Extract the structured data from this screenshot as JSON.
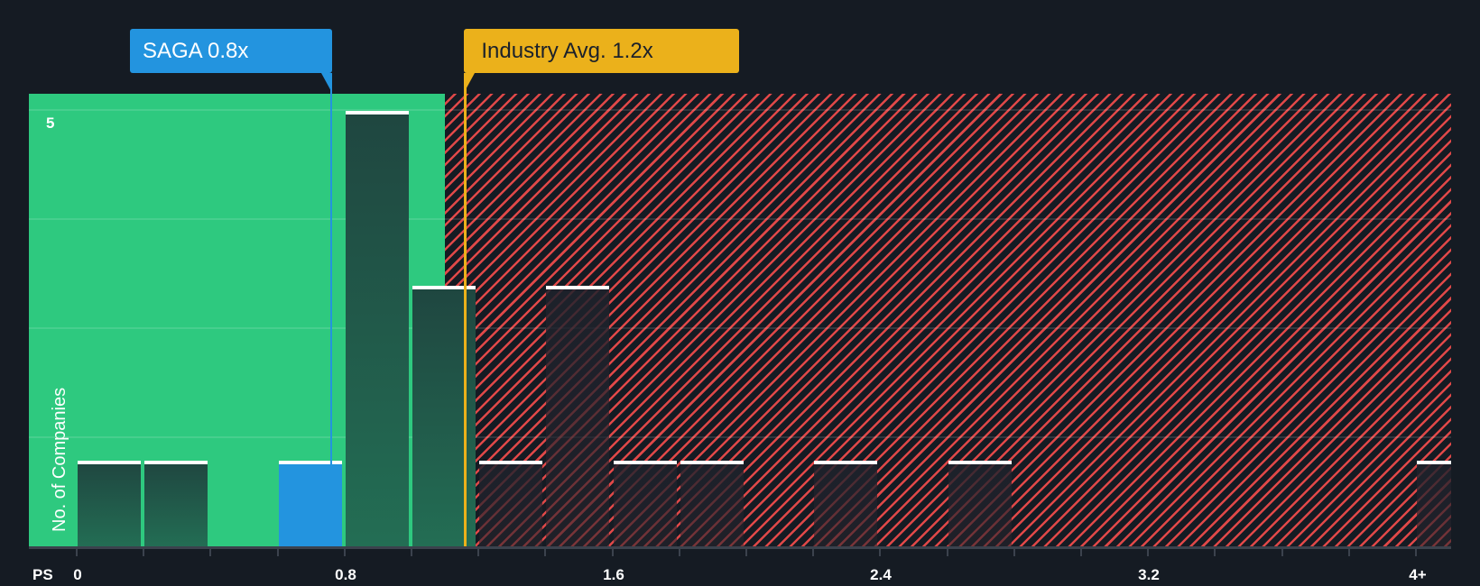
{
  "chart_data": {
    "type": "bar",
    "title": "",
    "xlabel": "PS",
    "ylabel": "No. of Companies",
    "x_tick_labels": [
      "0",
      "0.8",
      "1.6",
      "2.4",
      "3.2",
      "4+"
    ],
    "y_tick_labels": [
      "5"
    ],
    "ylim": [
      0,
      5.2
    ],
    "bin_width": 0.2,
    "categories": [
      "0-0.2",
      "0.2-0.4",
      "0.4-0.6",
      "0.6-0.8",
      "0.8-1.0",
      "1.0-1.2",
      "1.2-1.4",
      "1.4-1.6",
      "1.6-1.8",
      "1.8-2.0",
      "2.0-2.2",
      "2.2-2.4",
      "2.4-2.6",
      "2.6-2.8",
      "2.8-3.0",
      "3.0-3.2",
      "3.2-3.4",
      "3.4-3.6",
      "3.6-3.8",
      "3.8-4.0",
      "4.0+"
    ],
    "values": [
      1,
      1,
      0,
      1,
      5,
      3,
      1,
      3,
      1,
      1,
      0,
      1,
      0,
      1,
      0,
      0,
      0,
      0,
      0,
      0,
      1
    ],
    "highlight_bin": "0.6-0.8",
    "markers": [
      {
        "label": "SAGA 0.8x",
        "value": 0.76,
        "color": "#2394df"
      },
      {
        "label": "Industry Avg. 1.2x",
        "value": 1.16,
        "color": "#ebb11b"
      }
    ],
    "regions": [
      {
        "name": "undervalued",
        "from": 0,
        "to": 1.1,
        "color": "#2ec97f"
      },
      {
        "name": "overvalued",
        "from": 1.1,
        "to": 4.1,
        "color": "#e04848",
        "pattern": "hatched"
      }
    ],
    "grid": true,
    "legend": "none"
  },
  "callouts": {
    "saga": "SAGA 0.8x",
    "industry": "Industry Avg. 1.2x"
  },
  "axis": {
    "x_title": "PS",
    "y_title": "No. of Companies",
    "y_tick_5": "5",
    "x_ticks": [
      "0",
      "0.8",
      "1.6",
      "2.4",
      "3.2",
      "4+"
    ]
  },
  "colors": {
    "background": "#151b23",
    "green": "#2ec97f",
    "red": "#e04848",
    "saga": "#2394df",
    "industry": "#ebb11b"
  }
}
